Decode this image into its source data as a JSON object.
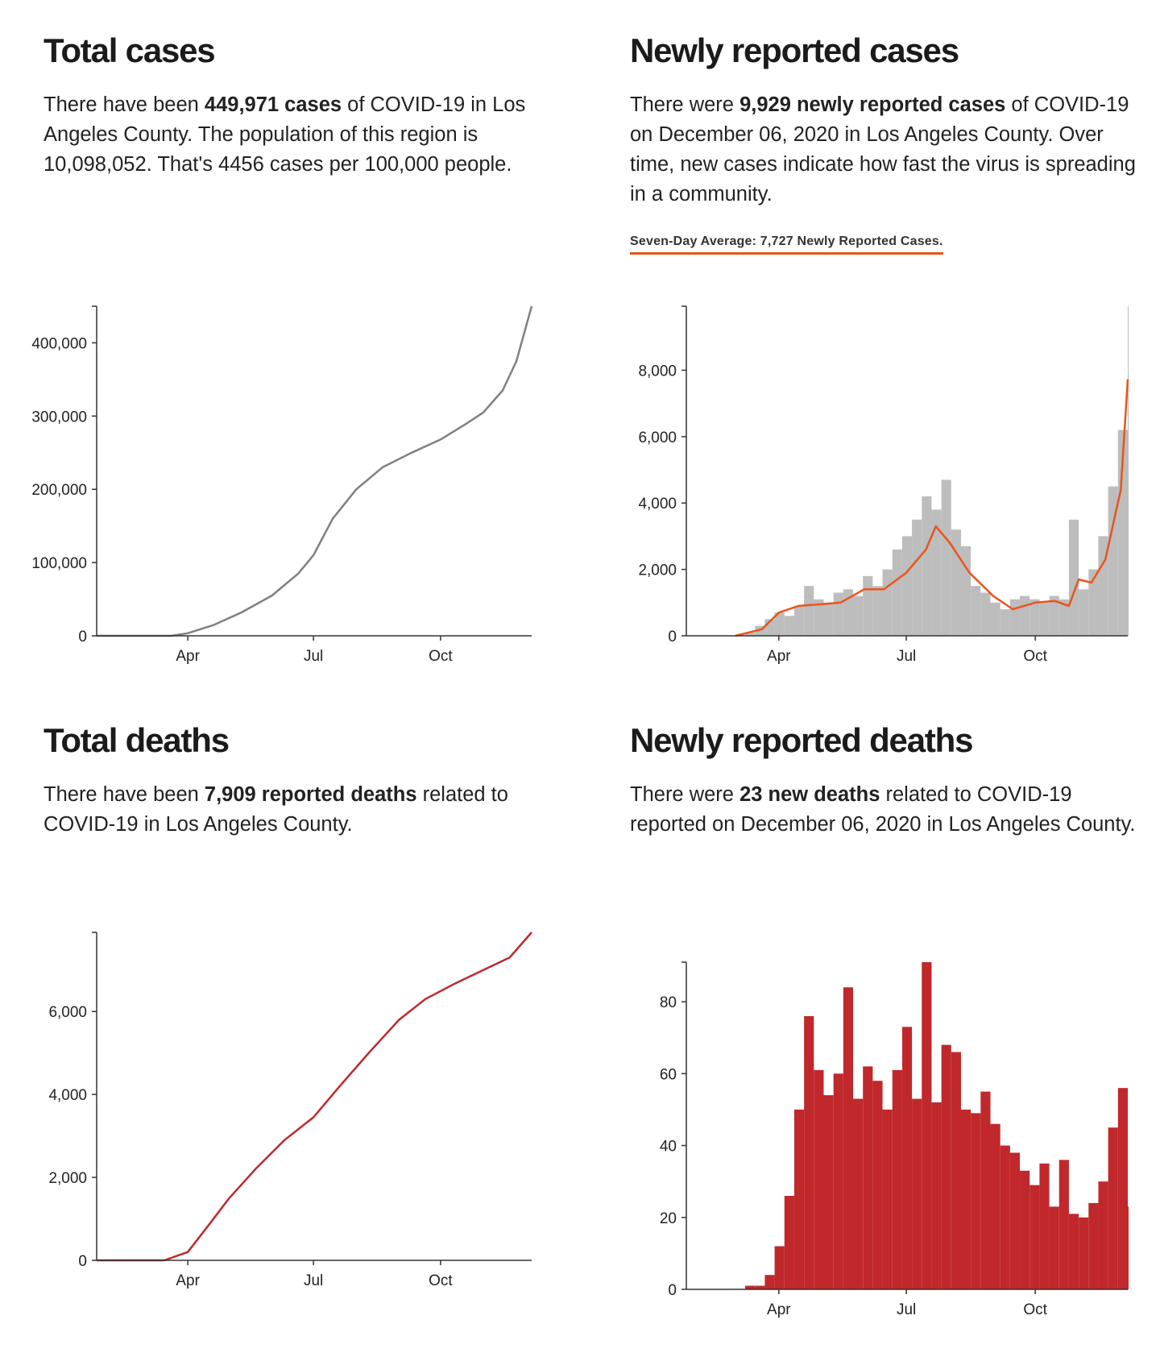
{
  "colors": {
    "cases_line": "#808080",
    "cases_bar": "#bdbdbd",
    "avg_line": "#e8551c",
    "deaths": "#c0282b",
    "axis": "#333333"
  },
  "panels": {
    "total_cases": {
      "title": "Total cases",
      "d1": "There have been ",
      "d2": "449,971 cases",
      "d3": " of COVID-19 in Los Angeles County. The population of this region is 10,098,052. That's 4456 cases per 100,000 people."
    },
    "new_cases": {
      "title": "Newly reported cases",
      "d1": "There were ",
      "d2": "9,929 newly reported cases",
      "d3": " of COVID-19 on December 06, 2020 in Los Angeles County. Over time, new cases indicate how fast the virus is spreading in a community.",
      "avg_note": "Seven-Day Average: 7,727 Newly Reported Cases."
    },
    "total_deaths": {
      "title": "Total deaths",
      "d1": "There have been ",
      "d2": "7,909 reported deaths",
      "d3": " related to COVID-19 in Los Angeles County."
    },
    "new_deaths": {
      "title": "Newly reported deaths",
      "d1": "There were ",
      "d2": "23 new deaths",
      "d3": " related to COVID-19 reported on December 06, 2020 in Los Angeles County."
    }
  },
  "chart_data": [
    {
      "id": "total_cases",
      "type": "line",
      "x_ticks": [
        "Apr",
        "Jul",
        "Oct"
      ],
      "y_ticks": [
        0,
        100000,
        200000,
        300000,
        400000
      ],
      "y_tick_labels": [
        "0",
        "100,000",
        "200,000",
        "300,000",
        "400,000"
      ],
      "ylim": [
        0,
        449971
      ],
      "xlim": [
        "2020-01-26",
        "2020-12-06"
      ],
      "x": [
        "2020-01-26",
        "2020-03-01",
        "2020-03-20",
        "2020-04-01",
        "2020-04-20",
        "2020-05-10",
        "2020-06-01",
        "2020-06-20",
        "2020-07-01",
        "2020-07-15",
        "2020-08-01",
        "2020-08-20",
        "2020-09-10",
        "2020-10-01",
        "2020-10-20",
        "2020-11-01",
        "2020-11-15",
        "2020-11-25",
        "2020-12-06"
      ],
      "series": [
        {
          "values": [
            0,
            0,
            0,
            3500,
            15000,
            32000,
            55000,
            85000,
            110000,
            160000,
            200000,
            230000,
            250000,
            268000,
            290000,
            305000,
            335000,
            375000,
            449971
          ]
        }
      ]
    },
    {
      "id": "new_cases",
      "type": "bar",
      "x_ticks": [
        "Apr",
        "Jul",
        "Oct"
      ],
      "y_ticks": [
        0,
        2000,
        4000,
        6000,
        8000
      ],
      "y_tick_labels": [
        "0",
        "2,000",
        "4,000",
        "6,000",
        "8,000"
      ],
      "ylim": [
        0,
        9929
      ],
      "xlim": [
        "2020-01-26",
        "2020-12-06"
      ],
      "bar_week_starts": [
        "2020-03-01",
        "2020-03-08",
        "2020-03-15",
        "2020-03-22",
        "2020-03-29",
        "2020-04-05",
        "2020-04-12",
        "2020-04-19",
        "2020-04-26",
        "2020-05-03",
        "2020-05-10",
        "2020-05-17",
        "2020-05-24",
        "2020-05-31",
        "2020-06-07",
        "2020-06-14",
        "2020-06-21",
        "2020-06-28",
        "2020-07-05",
        "2020-07-12",
        "2020-07-19",
        "2020-07-26",
        "2020-08-02",
        "2020-08-09",
        "2020-08-16",
        "2020-08-23",
        "2020-08-30",
        "2020-09-06",
        "2020-09-13",
        "2020-09-20",
        "2020-09-27",
        "2020-10-04",
        "2020-10-11",
        "2020-10-18",
        "2020-10-25",
        "2020-11-01",
        "2020-11-08",
        "2020-11-15",
        "2020-11-22",
        "2020-11-29",
        "2020-12-06"
      ],
      "bars": [
        20,
        100,
        300,
        500,
        700,
        600,
        900,
        1500,
        1100,
        1000,
        1300,
        1400,
        1200,
        1800,
        1500,
        2000,
        2600,
        3000,
        3500,
        4200,
        3800,
        4700,
        3200,
        2700,
        1500,
        1300,
        1000,
        800,
        1100,
        1200,
        1100,
        1000,
        1200,
        1100,
        3500,
        1400,
        2000,
        3000,
        4500,
        6200,
        9929
      ],
      "series": [
        {
          "x": [
            "2020-03-01",
            "2020-03-20",
            "2020-04-01",
            "2020-04-15",
            "2020-05-01",
            "2020-05-15",
            "2020-06-01",
            "2020-06-15",
            "2020-07-01",
            "2020-07-15",
            "2020-07-22",
            "2020-08-01",
            "2020-08-15",
            "2020-09-01",
            "2020-09-15",
            "2020-10-01",
            "2020-10-15",
            "2020-10-25",
            "2020-11-01",
            "2020-11-10",
            "2020-11-20",
            "2020-12-01",
            "2020-12-06"
          ],
          "values": [
            0,
            200,
            700,
            900,
            950,
            1000,
            1400,
            1400,
            1900,
            2600,
            3300,
            2800,
            1900,
            1200,
            800,
            1000,
            1050,
            900,
            1700,
            1600,
            2300,
            4400,
            7727
          ]
        }
      ]
    },
    {
      "id": "total_deaths",
      "type": "line",
      "x_ticks": [
        "Apr",
        "Jul",
        "Oct"
      ],
      "y_ticks": [
        0,
        2000,
        4000,
        6000
      ],
      "y_tick_labels": [
        "0",
        "2,000",
        "4,000",
        "6,000"
      ],
      "ylim": [
        0,
        7909
      ],
      "xlim": [
        "2020-01-26",
        "2020-12-06"
      ],
      "x": [
        "2020-01-26",
        "2020-03-15",
        "2020-04-01",
        "2020-04-15",
        "2020-05-01",
        "2020-05-20",
        "2020-06-10",
        "2020-07-01",
        "2020-07-20",
        "2020-08-10",
        "2020-09-01",
        "2020-09-20",
        "2020-10-10",
        "2020-11-01",
        "2020-11-20",
        "2020-12-06"
      ],
      "series": [
        {
          "values": [
            0,
            0,
            200,
            800,
            1500,
            2200,
            2900,
            3450,
            4200,
            5000,
            5800,
            6300,
            6650,
            7000,
            7300,
            7909
          ]
        }
      ]
    },
    {
      "id": "new_deaths",
      "type": "bar",
      "x_ticks": [
        "Apr",
        "Jul",
        "Oct"
      ],
      "y_ticks": [
        0,
        20,
        40,
        60,
        80
      ],
      "y_tick_labels": [
        "0",
        "20",
        "40",
        "60",
        "80"
      ],
      "ylim": [
        0,
        91
      ],
      "xlim": [
        "2020-01-26",
        "2020-12-06"
      ],
      "bar_week_starts": [
        "2020-03-08",
        "2020-03-15",
        "2020-03-22",
        "2020-03-29",
        "2020-04-05",
        "2020-04-12",
        "2020-04-19",
        "2020-04-26",
        "2020-05-03",
        "2020-05-10",
        "2020-05-17",
        "2020-05-24",
        "2020-05-31",
        "2020-06-07",
        "2020-06-14",
        "2020-06-21",
        "2020-06-28",
        "2020-07-05",
        "2020-07-12",
        "2020-07-19",
        "2020-07-26",
        "2020-08-02",
        "2020-08-09",
        "2020-08-16",
        "2020-08-23",
        "2020-08-30",
        "2020-09-06",
        "2020-09-13",
        "2020-09-20",
        "2020-09-27",
        "2020-10-04",
        "2020-10-11",
        "2020-10-18",
        "2020-10-25",
        "2020-11-01",
        "2020-11-08",
        "2020-11-15",
        "2020-11-22",
        "2020-11-29",
        "2020-12-06"
      ],
      "bars": [
        1,
        1,
        4,
        12,
        26,
        50,
        76,
        61,
        54,
        60,
        84,
        53,
        62,
        58,
        50,
        61,
        73,
        53,
        91,
        52,
        68,
        66,
        50,
        49,
        55,
        46,
        40,
        38,
        33,
        29,
        35,
        23,
        36,
        21,
        20,
        24,
        30,
        45,
        56,
        23
      ]
    }
  ]
}
